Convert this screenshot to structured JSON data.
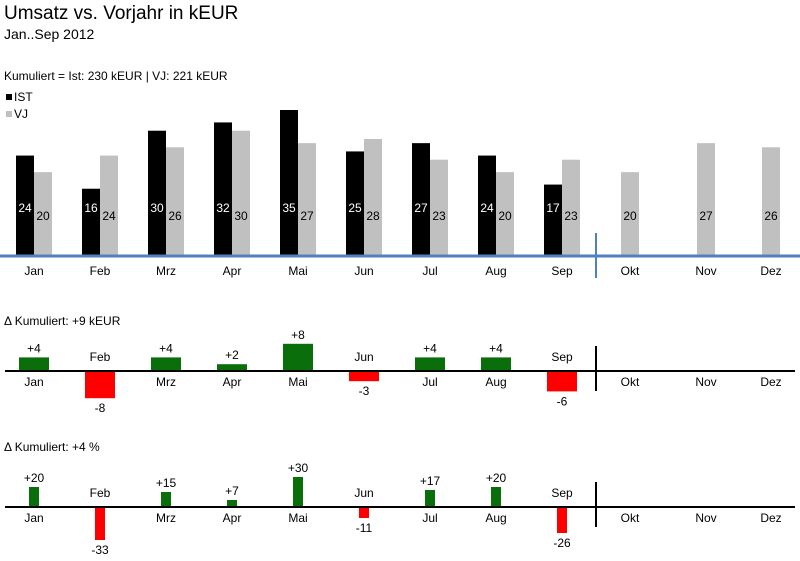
{
  "title": "Umsatz vs. Vorjahr in kEUR",
  "subtitle": "Jan..Sep 2012",
  "cumulative_text": "Kumuliert = Ist: 230 kEUR | VJ: 221 kEUR",
  "legend": {
    "ist": "IST",
    "vj": "VJ"
  },
  "delta_abs_label": "Δ Kumuliert: +9 kEUR",
  "delta_pct_label": "Δ Kumuliert: +4 %",
  "colors": {
    "ist": "#000000",
    "vj": "#c0c0c0",
    "axis": "#4f81bd",
    "positive": "#0a6e0a",
    "negative": "#ff0000",
    "baseline": "#000000"
  },
  "chart_data": [
    {
      "type": "bar",
      "title": "Umsatz vs. Vorjahr in kEUR",
      "subtitle": "Jan..Sep 2012",
      "categories": [
        "Jan",
        "Feb",
        "Mrz",
        "Apr",
        "Mai",
        "Jun",
        "Jul",
        "Aug",
        "Sep",
        "Okt",
        "Nov",
        "Dez"
      ],
      "series": [
        {
          "name": "IST",
          "values": [
            24,
            16,
            30,
            32,
            35,
            25,
            27,
            24,
            17,
            null,
            null,
            null
          ]
        },
        {
          "name": "VJ",
          "values": [
            20,
            24,
            26,
            30,
            27,
            28,
            23,
            20,
            23,
            20,
            27,
            26
          ]
        }
      ],
      "ylim": [
        0,
        35
      ],
      "legend": "top-left",
      "grid": false
    },
    {
      "type": "bar",
      "title": "Δ Kumuliert: +9 kEUR",
      "categories": [
        "Jan",
        "Feb",
        "Mrz",
        "Apr",
        "Mai",
        "Jun",
        "Jul",
        "Aug",
        "Sep",
        "Okt",
        "Nov",
        "Dez"
      ],
      "values": [
        4,
        -8,
        4,
        2,
        8,
        -3,
        4,
        4,
        -6,
        null,
        null,
        null
      ],
      "labels": [
        "+4",
        "-8",
        "+4",
        "+2",
        "+8",
        "-3",
        "+4",
        "+4",
        "-6",
        "",
        "",
        ""
      ]
    },
    {
      "type": "bar",
      "title": "Δ Kumuliert: +4 %",
      "categories": [
        "Jan",
        "Feb",
        "Mrz",
        "Apr",
        "Mai",
        "Jun",
        "Jul",
        "Aug",
        "Sep",
        "Okt",
        "Nov",
        "Dez"
      ],
      "values": [
        20,
        -33,
        15,
        7,
        30,
        -11,
        17,
        20,
        -26,
        null,
        null,
        null
      ],
      "labels": [
        "+20",
        "-33",
        "+15",
        "+7",
        "+30",
        "-11",
        "+17",
        "+20",
        "-26",
        "",
        "",
        ""
      ]
    }
  ]
}
